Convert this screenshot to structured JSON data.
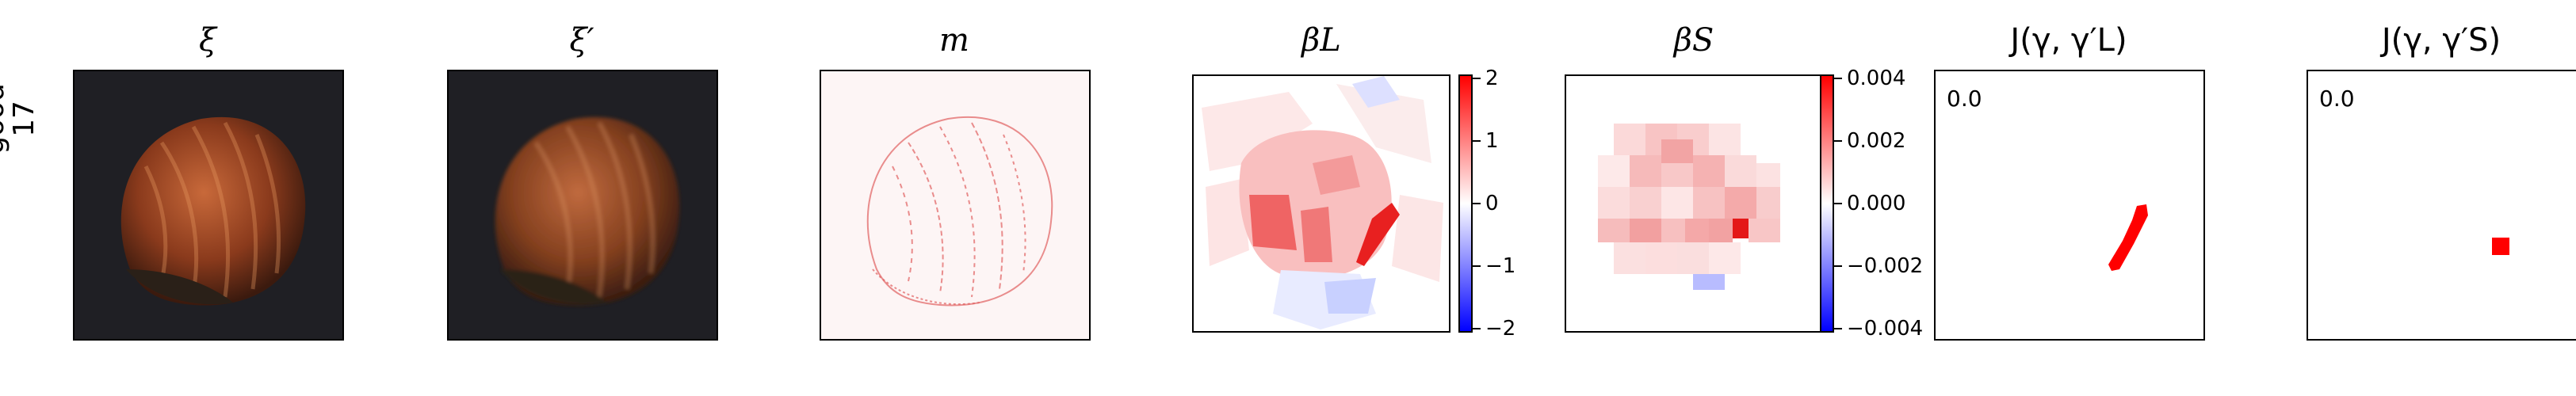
{
  "row_label": {
    "line1": "good",
    "line2": "17"
  },
  "panels": {
    "xi": {
      "title": "ξ"
    },
    "xi_prime": {
      "title": "ξ′"
    },
    "m": {
      "title": "m"
    },
    "beta_L": {
      "title": "βL",
      "colorbar_ticks": [
        "2",
        "1",
        "0",
        "−1",
        "−2"
      ]
    },
    "beta_S": {
      "title": "βS",
      "colorbar_ticks": [
        "0.004",
        "0.002",
        "0.000",
        "−0.002",
        "−0.004"
      ]
    },
    "J_L": {
      "title": "J(γ, γ′L)",
      "score": "0.0"
    },
    "J_S": {
      "title": "J(γ, γ′S)",
      "score": "0.0"
    }
  },
  "colors": {
    "red": "#ff0000",
    "blue": "#0000ff",
    "background": "#ffffff"
  }
}
